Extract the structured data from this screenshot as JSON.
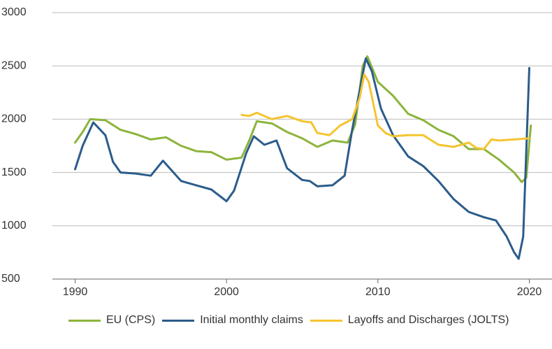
{
  "chart_data": {
    "type": "line",
    "xlim": [
      1988.5,
      2021.5
    ],
    "xticks": [
      1990,
      2000,
      2010,
      2020
    ],
    "ylim": [
      500,
      3000
    ],
    "yticks": [
      500,
      1000,
      1500,
      2000,
      2500,
      3000
    ],
    "grid": true,
    "series": [
      {
        "name": "EU (CPS)",
        "color": "#8cb43c",
        "x": [
          1990,
          1990.5,
          1991,
          1992,
          1993,
          1994,
          1995,
          1996,
          1997,
          1998,
          1999,
          2000,
          2001,
          2001.5,
          2002,
          2003,
          2004,
          2005,
          2006,
          2007,
          2008,
          2008.5,
          2009,
          2009.3,
          2010,
          2011,
          2012,
          2013,
          2014,
          2015,
          2016,
          2017,
          2018,
          2019,
          2019.5,
          2019.8,
          2020.1
        ],
        "values": [
          1780,
          1880,
          2000,
          1990,
          1900,
          1860,
          1810,
          1830,
          1750,
          1700,
          1690,
          1620,
          1640,
          1800,
          1980,
          1960,
          1880,
          1820,
          1740,
          1800,
          1780,
          1950,
          2500,
          2590,
          2350,
          2220,
          2050,
          1990,
          1900,
          1840,
          1720,
          1720,
          1620,
          1500,
          1410,
          1450,
          1940
        ]
      },
      {
        "name": "Initial monthly claims",
        "color": "#2b5c8a",
        "x": [
          1990,
          1990.5,
          1991.2,
          1992,
          1992.5,
          1993,
          1994,
          1995,
          1995.8,
          1996.5,
          1997,
          1998,
          1999,
          2000,
          2000.5,
          2001.3,
          2001.8,
          2002.5,
          2003.3,
          2004,
          2005,
          2005.5,
          2006,
          2007,
          2007.8,
          2008.3,
          2009.2,
          2009.6,
          2010.2,
          2011,
          2012,
          2013,
          2014,
          2015,
          2016,
          2017,
          2017.8,
          2018.5,
          2019,
          2019.3,
          2019.6,
          2019.8,
          2020
        ],
        "values": [
          1530,
          1750,
          1970,
          1850,
          1600,
          1500,
          1490,
          1470,
          1610,
          1500,
          1420,
          1380,
          1340,
          1230,
          1330,
          1680,
          1840,
          1760,
          1800,
          1540,
          1430,
          1420,
          1370,
          1380,
          1470,
          1900,
          2570,
          2450,
          2100,
          1850,
          1650,
          1560,
          1420,
          1250,
          1130,
          1080,
          1050,
          900,
          750,
          690,
          900,
          1700,
          2480
        ]
      },
      {
        "name": "Layoffs and Discharges (JOLTS)",
        "color": "#f5c431",
        "x": [
          2001,
          2001.5,
          2002,
          2003,
          2004,
          2005,
          2005.6,
          2006,
          2006.8,
          2007.5,
          2008.3,
          2008.8,
          2009.1,
          2009.4,
          2010,
          2010.5,
          2011,
          2012,
          2013,
          2014,
          2015,
          2016,
          2016.5,
          2017,
          2017.5,
          2018,
          2019,
          2020
        ],
        "values": [
          2040,
          2030,
          2060,
          2000,
          2030,
          1980,
          1970,
          1870,
          1850,
          1940,
          2000,
          2200,
          2420,
          2350,
          1940,
          1870,
          1840,
          1850,
          1850,
          1760,
          1740,
          1780,
          1730,
          1720,
          1810,
          1800,
          1810,
          1820
        ]
      }
    ]
  }
}
